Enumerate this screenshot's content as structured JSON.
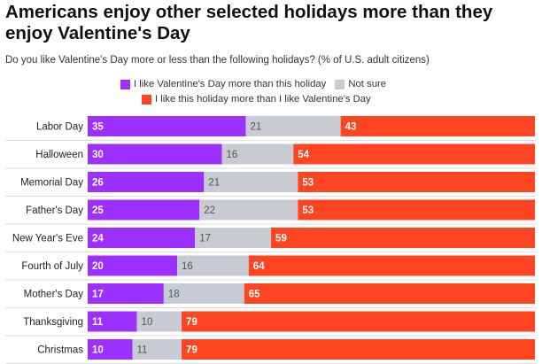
{
  "chart_data": {
    "type": "bar",
    "orientation": "horizontal",
    "stacked": true,
    "title": "Americans enjoy other selected holidays more than they enjoy Valentine's Day",
    "subtitle": "Do you like Valentine's Day more or less than the following holidays? (% of U.S. adult citizens)",
    "categories": [
      "Labor Day",
      "Halloween",
      "Memorial Day",
      "Father's Day",
      "New Year's Eve",
      "Fourth of July",
      "Mother's Day",
      "Thanksgiving",
      "Christmas"
    ],
    "series": [
      {
        "name": "I like Valentine's Day more than this holiday",
        "color": "#9b30ff",
        "values": [
          35,
          30,
          26,
          25,
          24,
          20,
          17,
          11,
          10
        ]
      },
      {
        "name": "Not sure",
        "color": "#c8cbd3",
        "values": [
          21,
          16,
          21,
          22,
          17,
          16,
          18,
          10,
          11
        ]
      },
      {
        "name": "I like this holiday more than I like Valentine's Day",
        "color": "#ff4422",
        "values": [
          43,
          54,
          53,
          53,
          59,
          64,
          65,
          79,
          79
        ]
      }
    ],
    "xlim": [
      0,
      100
    ],
    "xlabel": "",
    "ylabel": "",
    "legend_position": "top"
  }
}
